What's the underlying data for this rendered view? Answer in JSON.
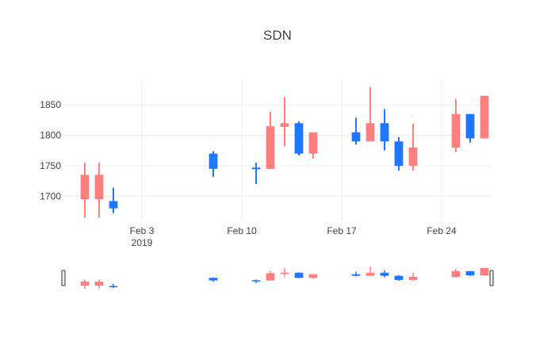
{
  "chart_data": {
    "type": "candlestick",
    "title": "SDN",
    "xlabel": "",
    "ylabel": "",
    "grid": true,
    "legend": "none",
    "x_tick_labels": [
      {
        "date": "2019-02-03",
        "label": "Feb 3",
        "sub": "2019"
      },
      {
        "date": "2019-02-10",
        "label": "Feb 10",
        "sub": ""
      },
      {
        "date": "2019-02-17",
        "label": "Feb 17",
        "sub": ""
      },
      {
        "date": "2019-02-24",
        "label": "Feb 24",
        "sub": ""
      }
    ],
    "y_ticks": [
      1700,
      1750,
      1800,
      1850
    ],
    "xlim": [
      "2019-01-29",
      "2019-02-27"
    ],
    "ylim": [
      1660,
      1892
    ],
    "range_slider": true,
    "increasing_color": "#1f77ff",
    "decreasing_color": "#ff7f7f",
    "candles": [
      {
        "date": "2019-01-30",
        "open": 1735,
        "high": 1755,
        "low": 1665,
        "close": 1695
      },
      {
        "date": "2019-01-31",
        "open": 1735,
        "high": 1755,
        "low": 1665,
        "close": 1695
      },
      {
        "date": "2019-02-01",
        "open": 1680,
        "high": 1714,
        "low": 1672,
        "close": 1692
      },
      {
        "date": "2019-02-08",
        "open": 1745,
        "high": 1774,
        "low": 1732,
        "close": 1770
      },
      {
        "date": "2019-02-11",
        "open": 1745,
        "high": 1755,
        "low": 1720,
        "close": 1747
      },
      {
        "date": "2019-02-12",
        "open": 1815,
        "high": 1839,
        "low": 1745,
        "close": 1745
      },
      {
        "date": "2019-02-13",
        "open": 1820,
        "high": 1863,
        "low": 1782,
        "close": 1814
      },
      {
        "date": "2019-02-14",
        "open": 1770,
        "high": 1823,
        "low": 1767,
        "close": 1820
      },
      {
        "date": "2019-02-15",
        "open": 1805,
        "high": 1805,
        "low": 1762,
        "close": 1770
      },
      {
        "date": "2019-02-18",
        "open": 1790,
        "high": 1829,
        "low": 1785,
        "close": 1805
      },
      {
        "date": "2019-02-19",
        "open": 1820,
        "high": 1879,
        "low": 1790,
        "close": 1790
      },
      {
        "date": "2019-02-20",
        "open": 1790,
        "high": 1843,
        "low": 1775,
        "close": 1820
      },
      {
        "date": "2019-02-21",
        "open": 1750,
        "high": 1797,
        "low": 1742,
        "close": 1790
      },
      {
        "date": "2019-02-22",
        "open": 1780,
        "high": 1819,
        "low": 1742,
        "close": 1750
      },
      {
        "date": "2019-02-25",
        "open": 1835,
        "high": 1859,
        "low": 1772,
        "close": 1780
      },
      {
        "date": "2019-02-26",
        "open": 1795,
        "high": 1835,
        "low": 1788,
        "close": 1835
      },
      {
        "date": "2019-02-27",
        "open": 1865,
        "high": 1865,
        "low": 1795,
        "close": 1795
      }
    ]
  }
}
